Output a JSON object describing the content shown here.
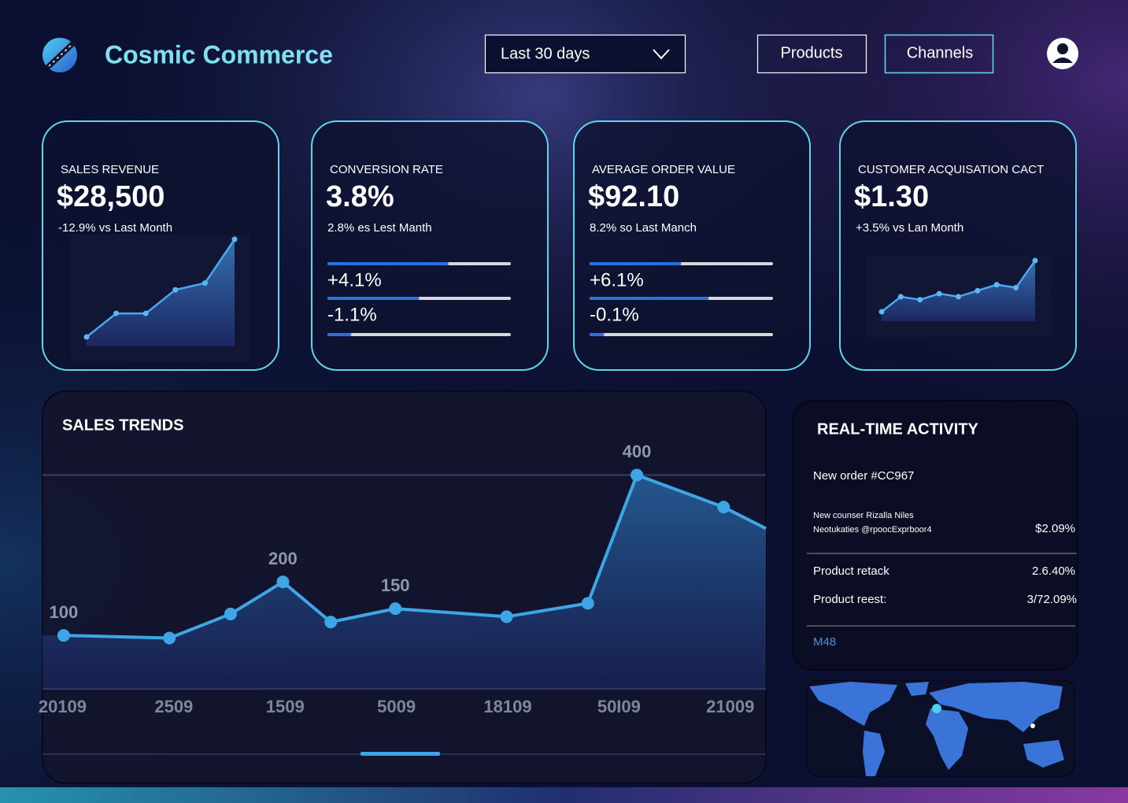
{
  "header": {
    "title": "Cosmic Commerce",
    "date_range": "Last 30 days",
    "nav": [
      "Products",
      "Channels"
    ]
  },
  "kpis": [
    {
      "label": "SALES REVENUE",
      "value": "$28,500",
      "change": "-12.9% vs Last Month",
      "sparkline": [
        5,
        12,
        12,
        19,
        21,
        34
      ]
    },
    {
      "label": "CONVERSION RATE",
      "value": "3.8%",
      "change": "2.8% es Lest Manth",
      "progress": [
        66,
        50,
        13
      ],
      "progress_labels": [
        "+4.1%",
        "-1.1%"
      ]
    },
    {
      "label": "AVERAGE ORDER VALUE",
      "value": "$92.10",
      "change": "8.2% so Last Manch",
      "progress": [
        50,
        65,
        8
      ],
      "progress_labels": [
        "+6.1%",
        "-0.1%"
      ]
    },
    {
      "label": "CUSTOMER ACQUISATION CACT",
      "value": "$1.30",
      "change": "+3.5% vs Lan Month",
      "sparkline": [
        2,
        7,
        6,
        8,
        7,
        9,
        11,
        10,
        19
      ]
    }
  ],
  "sales_trends": {
    "type": "line",
    "title": "SALES TRENDS",
    "x": [
      0.01,
      0.96,
      1.51,
      1.98,
      2.41,
      2.99,
      3.99,
      4.72,
      5.16,
      5.94,
      6.32
    ],
    "values": [
      100,
      95,
      140,
      200,
      125,
      150,
      135,
      160,
      400,
      340,
      300
    ],
    "value_labels": [
      "100",
      null,
      null,
      "200",
      null,
      "150",
      null,
      null,
      "400",
      null,
      null
    ],
    "xlim": [
      -0.18,
      6.32
    ],
    "xticks": [
      {
        "value": 0,
        "label": "20109"
      },
      {
        "value": 1,
        "label": "2509"
      },
      {
        "value": 2,
        "label": "1509"
      },
      {
        "value": 3,
        "label": "5009"
      },
      {
        "value": 4,
        "label": "18109"
      },
      {
        "value": 5,
        "label": "50I09"
      },
      {
        "value": 6,
        "label": "21009"
      }
    ],
    "ylim": [
      0,
      430
    ],
    "yticks": [
      0,
      400
    ],
    "show_ytick_labels": false,
    "grid": true,
    "color": "#3ea6e6"
  },
  "activity": {
    "title": "REAL-TIME ACTIVITY",
    "new_order": "New order #CC967",
    "detail_lines": [
      "New counser Rizalla Niles",
      "Neotukaties @rpoocExprboor4"
    ],
    "detail_value": "$2.09%",
    "rows": [
      [
        "Product retack",
        "2.6.40%"
      ],
      [
        "Product reest:",
        "3/72.09%"
      ]
    ],
    "link": "M48"
  }
}
